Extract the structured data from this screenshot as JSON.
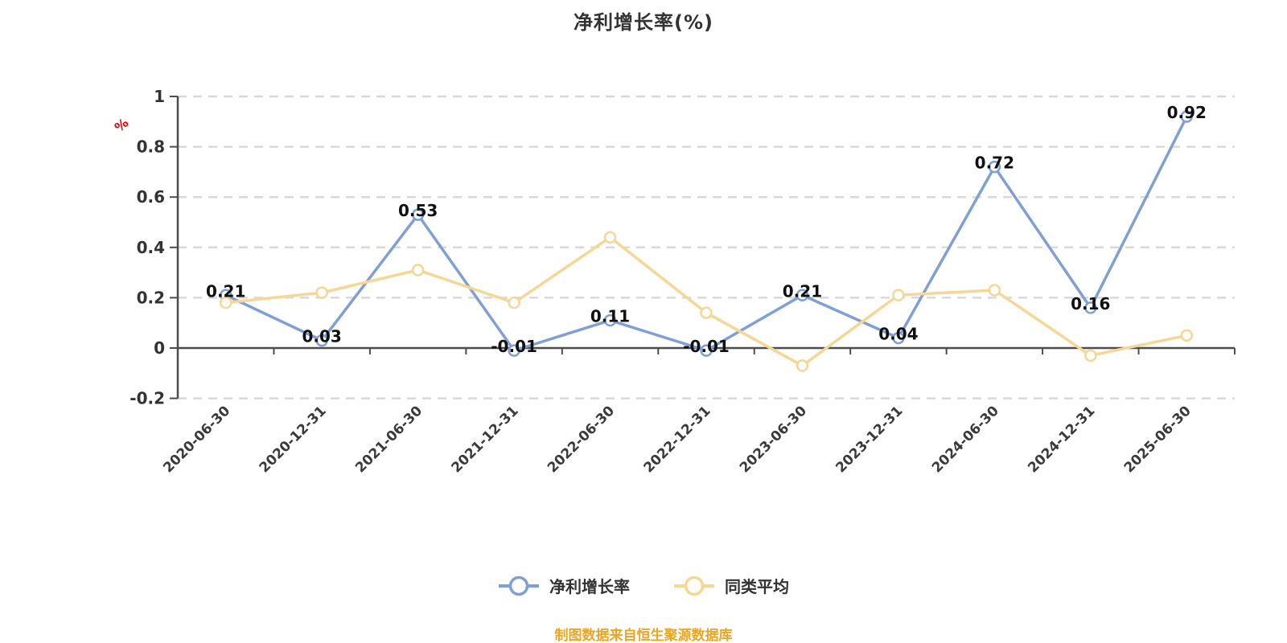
{
  "chart_data": {
    "type": "line",
    "title": "净利增长率(%)",
    "y_unit": "%",
    "categories": [
      "2020-06-30",
      "2020-12-31",
      "2021-06-30",
      "2021-12-31",
      "2022-06-30",
      "2022-12-31",
      "2023-06-30",
      "2023-12-31",
      "2024-06-30",
      "2024-12-31",
      "2025-06-30"
    ],
    "y_ticks": [
      "1",
      "0.8",
      "0.6",
      "0.4",
      "0.2",
      "0",
      "-0.2"
    ],
    "y_tick_values": [
      1,
      0.8,
      0.6,
      0.4,
      0.2,
      0,
      -0.2
    ],
    "ylim": [
      -0.2,
      1
    ],
    "grid": "horizontal-dashed",
    "legend_position": "bottom",
    "series": [
      {
        "name": "净利增长率",
        "color": "#7f9fd5",
        "show_labels": true,
        "values": [
          0.21,
          0.03,
          0.53,
          -0.01,
          0.11,
          -0.01,
          0.21,
          0.04,
          0.72,
          0.16,
          0.92
        ],
        "labels": [
          "0.21",
          "0.03",
          "0.53",
          "-0.01",
          "0.11",
          "-0.01",
          "0.21",
          "0.04",
          "0.72",
          "0.16",
          "0.92"
        ]
      },
      {
        "name": "同类平均",
        "color": "#f6d795",
        "show_labels": false,
        "values": [
          0.18,
          0.22,
          0.31,
          0.18,
          0.44,
          0.14,
          -0.07,
          0.21,
          0.23,
          -0.03,
          0.05
        ],
        "labels": []
      }
    ]
  },
  "style": {
    "axis_color": "#4d4d4d",
    "grid_color": "#d9d9d9",
    "tick_label_color": "#333333",
    "data_label_color": "#111111",
    "unit_color": "#e60000",
    "source_color": "#eda51e",
    "marker_fill": "#ffffff"
  },
  "footer": {
    "source": "制图数据来自恒生聚源数据库"
  }
}
